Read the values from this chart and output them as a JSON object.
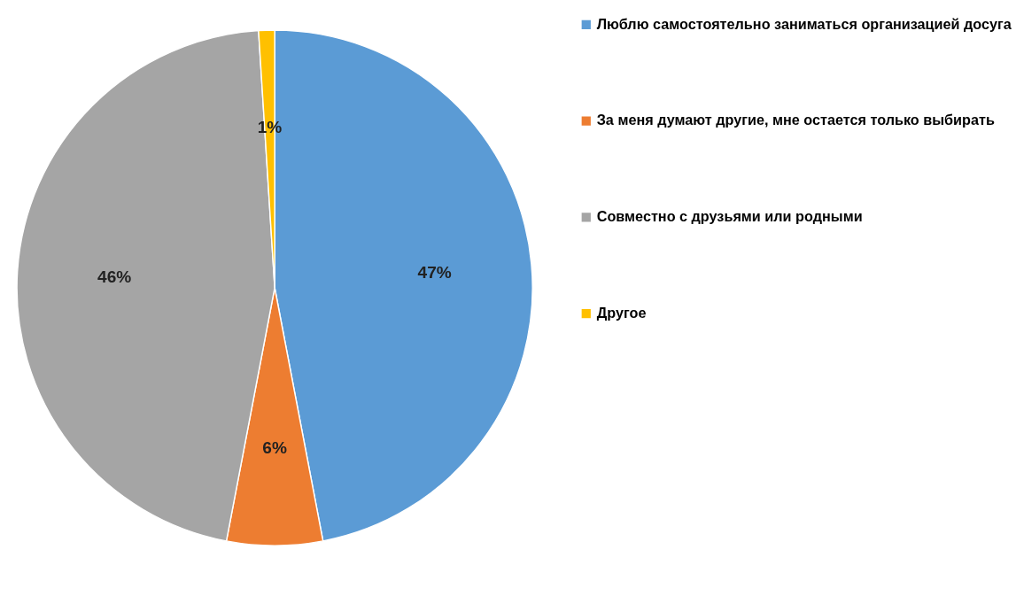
{
  "chart_data": {
    "type": "pie",
    "categories": [
      "Люблю самостоятельно заниматься организацией досуга",
      "За меня думают другие, мне остается только выбирать",
      "Совместно с друзьями или родными",
      "Другое"
    ],
    "values": [
      47,
      6,
      46,
      1
    ],
    "colors": [
      "#5b9bd5",
      "#ed7d31",
      "#a5a5a5",
      "#ffc000"
    ],
    "value_labels": [
      "47%",
      "6%",
      "46%",
      "1%"
    ],
    "legend": "right"
  }
}
